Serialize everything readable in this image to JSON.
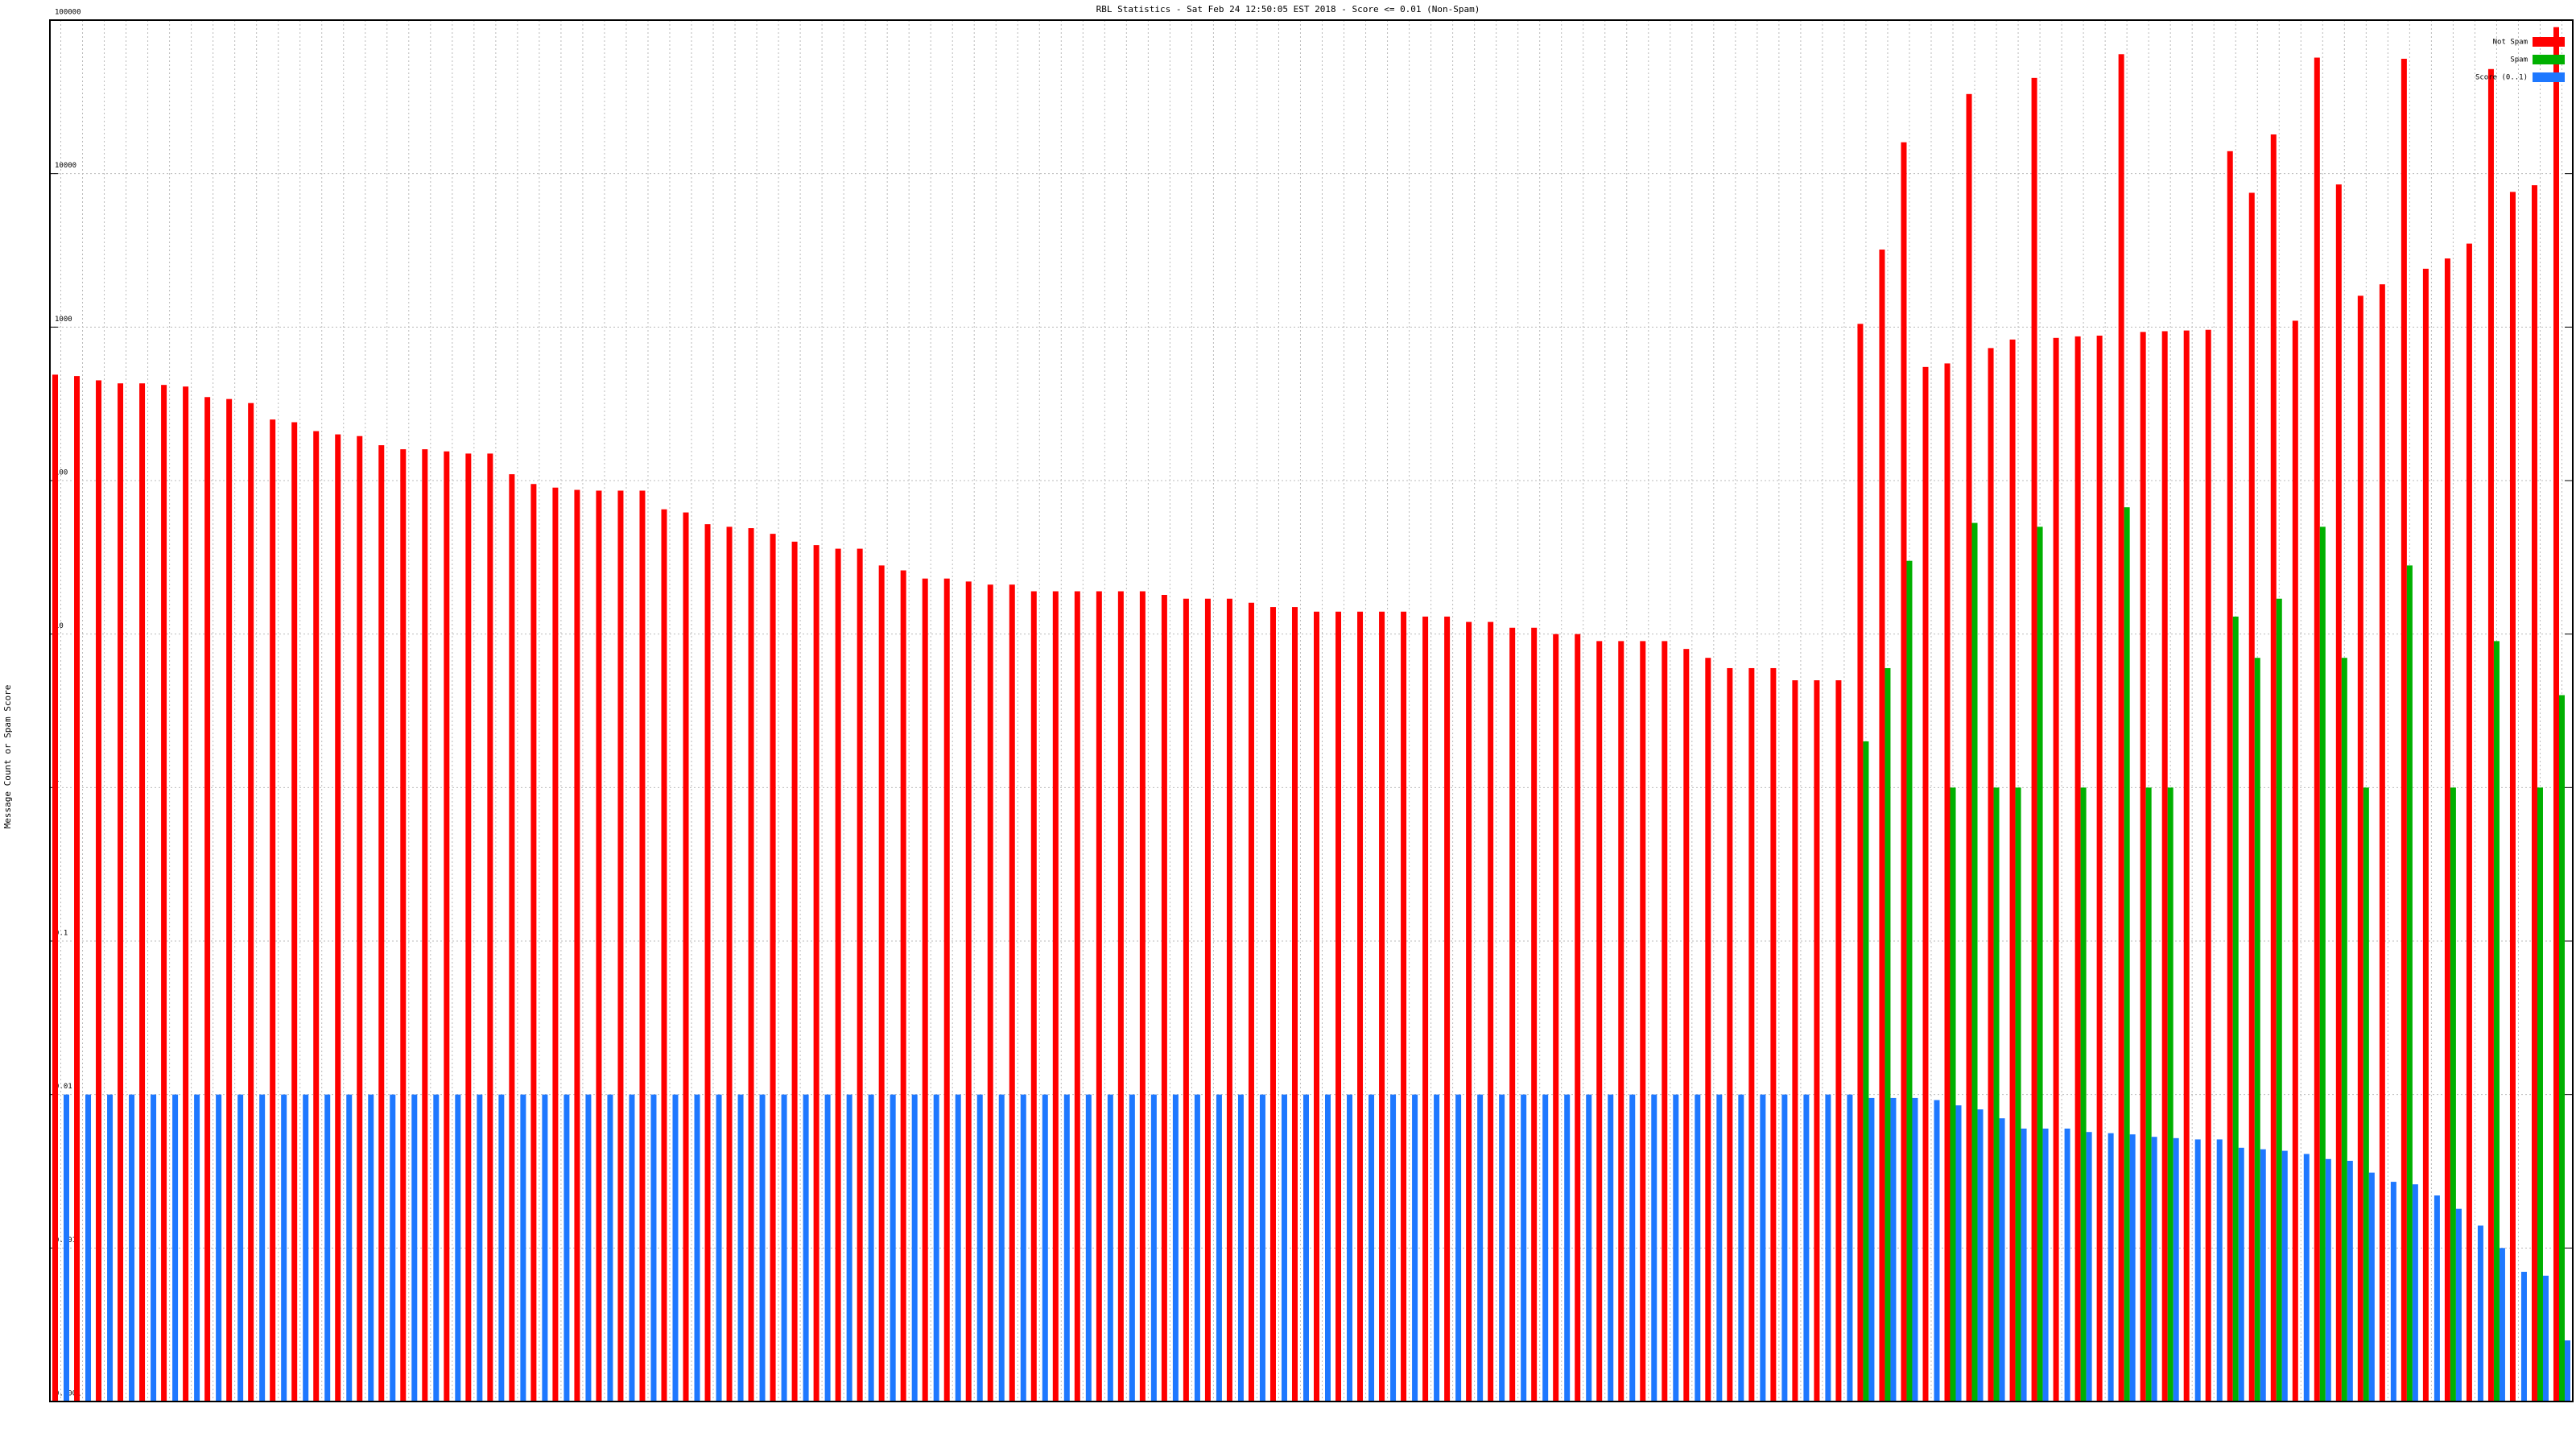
{
  "chart_data": {
    "type": "bar",
    "title": "RBL Statistics - Sat Feb 24 12:50:05 EST 2018 - Score <= 0.01 (Non-Spam)",
    "y_label": "Message Count or Spam Score",
    "log_scale": true,
    "grid": true,
    "legend": "top-right",
    "ylim": [
      0.0001,
      100000
    ],
    "yticks": [
      0.0001,
      0.001,
      0.01,
      0.1,
      1,
      10,
      100,
      1000,
      10000,
      100000
    ],
    "categories": [
      null,
      null,
      null,
      null,
      null,
      null,
      null,
      null,
      null,
      null,
      null,
      null,
      null,
      null,
      null,
      null,
      null,
      null,
      null,
      null,
      null,
      null,
      null,
      null,
      null,
      null,
      null,
      null,
      null,
      null,
      null,
      null,
      null,
      null,
      null,
      null,
      null,
      null,
      null,
      null,
      null,
      null,
      null,
      null,
      null,
      null,
      null,
      null,
      null,
      null,
      null,
      null,
      null,
      null,
      null,
      null,
      null,
      null,
      null,
      null,
      null,
      null,
      null,
      null,
      null,
      null,
      null,
      null,
      null,
      null,
      null,
      null,
      null,
      null,
      null,
      null,
      null,
      null,
      null,
      null,
      null,
      null,
      null,
      null,
      null,
      null,
      null,
      null,
      null,
      null,
      null,
      null,
      null,
      null,
      null,
      null,
      null,
      null,
      null,
      null,
      null,
      null,
      null,
      null,
      null,
      null,
      null,
      null,
      null,
      null,
      null,
      null,
      null,
      null,
      null,
      null
    ],
    "series": [
      {
        "name": "Not Spam",
        "color": "#ff0000",
        "values": [
          490,
          480,
          450,
          430,
          430,
          420,
          410,
          350,
          340,
          320,
          250,
          240,
          210,
          200,
          195,
          170,
          160,
          160,
          155,
          150,
          150,
          110,
          95,
          90,
          87,
          86,
          86,
          86,
          65,
          62,
          52,
          50,
          49,
          45,
          40,
          38,
          36,
          36,
          28,
          26,
          23,
          23,
          22,
          21,
          21,
          19,
          19,
          19,
          19,
          19,
          19,
          18,
          17,
          17,
          17,
          16,
          15,
          15,
          14,
          14,
          14,
          14,
          14,
          13,
          13,
          12,
          12,
          11,
          11,
          10,
          10,
          9,
          9,
          9,
          9,
          8,
          7,
          6,
          6,
          6,
          5,
          5,
          5,
          1050,
          3200,
          16000,
          550,
          580,
          33000,
          730,
          830,
          42000,
          850,
          870,
          880,
          60000,
          930,
          940,
          950,
          960,
          14000,
          7500,
          18000,
          1100,
          57000,
          8500,
          1600,
          1900,
          56000,
          2400,
          2800,
          3500,
          48000,
          7600,
          8400,
          90000
        ]
      },
      {
        "name": "Spam",
        "color": "#00b000",
        "values": [
          null,
          null,
          null,
          null,
          null,
          null,
          null,
          null,
          null,
          null,
          null,
          null,
          null,
          null,
          null,
          null,
          null,
          null,
          null,
          null,
          null,
          null,
          null,
          null,
          null,
          null,
          null,
          null,
          null,
          null,
          null,
          null,
          null,
          null,
          null,
          null,
          null,
          null,
          null,
          null,
          null,
          null,
          null,
          null,
          null,
          null,
          null,
          null,
          null,
          null,
          null,
          null,
          null,
          null,
          null,
          null,
          null,
          null,
          null,
          null,
          null,
          null,
          null,
          null,
          null,
          null,
          null,
          null,
          null,
          null,
          null,
          null,
          null,
          null,
          null,
          null,
          null,
          null,
          null,
          null,
          null,
          null,
          null,
          2,
          6,
          30,
          null,
          1,
          53,
          1,
          1,
          50,
          null,
          1,
          null,
          67,
          1,
          1,
          null,
          null,
          13,
          7,
          17,
          null,
          50,
          7,
          1,
          null,
          28,
          null,
          1,
          null,
          9,
          null,
          1,
          4
        ]
      },
      {
        "name": "Score (0..1)",
        "color": "#1e78ff",
        "values": [
          0.01,
          0.01,
          0.01,
          0.01,
          0.01,
          0.01,
          0.01,
          0.01,
          0.01,
          0.01,
          0.01,
          0.01,
          0.01,
          0.01,
          0.01,
          0.01,
          0.01,
          0.01,
          0.01,
          0.01,
          0.01,
          0.01,
          0.01,
          0.01,
          0.01,
          0.01,
          0.01,
          0.01,
          0.01,
          0.01,
          0.01,
          0.01,
          0.01,
          0.01,
          0.01,
          0.01,
          0.01,
          0.01,
          0.01,
          0.01,
          0.01,
          0.01,
          0.01,
          0.01,
          0.01,
          0.01,
          0.01,
          0.01,
          0.01,
          0.01,
          0.01,
          0.01,
          0.01,
          0.01,
          0.01,
          0.01,
          0.01,
          0.01,
          0.01,
          0.01,
          0.01,
          0.01,
          0.01,
          0.01,
          0.01,
          0.01,
          0.01,
          0.01,
          0.01,
          0.01,
          0.01,
          0.01,
          0.01,
          0.01,
          0.01,
          0.01,
          0.01,
          0.01,
          0.01,
          0.01,
          0.01,
          0.01,
          0.01,
          0.0095,
          0.0095,
          0.0095,
          0.0092,
          0.0085,
          0.008,
          0.007,
          0.006,
          0.006,
          0.006,
          0.0057,
          0.0056,
          0.0055,
          0.0053,
          0.0052,
          0.0051,
          0.0051,
          0.0045,
          0.0044,
          0.0043,
          0.0041,
          0.0038,
          0.0037,
          0.0031,
          0.0027,
          0.0026,
          0.0022,
          0.0018,
          0.0014,
          0.001,
          0.0007,
          0.00066,
          0.00025
        ]
      }
    ]
  }
}
